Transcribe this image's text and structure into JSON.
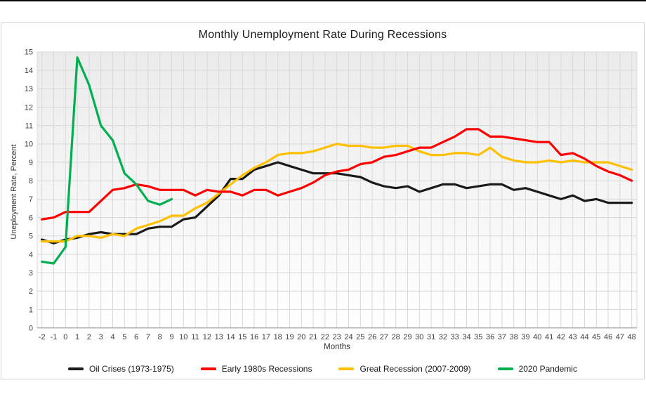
{
  "chart": {
    "container": "bordered chart card on white page"
  },
  "chart_data": {
    "type": "line",
    "title": "Monthly Unemployment Rate During Recessions",
    "xlabel": "Months",
    "ylabel": "Uneployment Rate, Percent",
    "x_ticks": {
      "min": -2,
      "max": 48,
      "step": 1
    },
    "y_ticks": {
      "min": 0,
      "max": 15,
      "step": 1
    },
    "ylim": [
      0,
      15
    ],
    "grid": true,
    "legend_position": "bottom",
    "style": {
      "background_gradient_top": "#ebebeb",
      "background_gradient_bottom": "#ffffff",
      "grid_color": "#d9d9d9",
      "axis_line_color": "#a6a6a6",
      "tick_label_color": "#404040",
      "line_width": 3.2
    },
    "series": [
      {
        "name": "Oil Crises (1973-1975)",
        "color": "#1a1a1a",
        "start_month": -2,
        "values": [
          4.8,
          4.6,
          4.8,
          4.9,
          5.1,
          5.2,
          5.1,
          5.1,
          5.1,
          5.4,
          5.5,
          5.5,
          5.9,
          6.0,
          6.6,
          7.2,
          8.1,
          8.1,
          8.6,
          8.8,
          9.0,
          8.8,
          8.6,
          8.4,
          8.4,
          8.4,
          8.3,
          8.2,
          7.9,
          7.7,
          7.6,
          7.7,
          7.4,
          7.6,
          7.8,
          7.8,
          7.6,
          7.7,
          7.8,
          7.8,
          7.5,
          7.6,
          7.4,
          7.2,
          7.0,
          7.2,
          6.9,
          7.0,
          6.8,
          6.8,
          6.8
        ]
      },
      {
        "name": "Early 1980s Recessions",
        "color": "#ff0000",
        "start_month": -2,
        "values": [
          5.9,
          6.0,
          6.3,
          6.3,
          6.3,
          6.9,
          7.5,
          7.6,
          7.8,
          7.7,
          7.5,
          7.5,
          7.5,
          7.2,
          7.5,
          7.4,
          7.4,
          7.2,
          7.5,
          7.5,
          7.2,
          7.4,
          7.6,
          7.9,
          8.3,
          8.5,
          8.6,
          8.9,
          9.0,
          9.3,
          9.4,
          9.6,
          9.8,
          9.8,
          10.1,
          10.4,
          10.8,
          10.8,
          10.4,
          10.4,
          10.3,
          10.2,
          10.1,
          10.1,
          9.4,
          9.5,
          9.2,
          8.8,
          8.5,
          8.3,
          8.0
        ]
      },
      {
        "name": "Great Recession (2007-2009)",
        "color": "#ffc000",
        "start_month": -2,
        "values": [
          4.7,
          4.7,
          4.7,
          5.0,
          5.0,
          4.9,
          5.1,
          5.0,
          5.4,
          5.6,
          5.8,
          6.1,
          6.1,
          6.5,
          6.8,
          7.3,
          7.8,
          8.3,
          8.7,
          9.0,
          9.4,
          9.5,
          9.5,
          9.6,
          9.8,
          10.0,
          9.9,
          9.9,
          9.8,
          9.8,
          9.9,
          9.9,
          9.6,
          9.4,
          9.4,
          9.5,
          9.5,
          9.4,
          9.8,
          9.3,
          9.1,
          9.0,
          9.0,
          9.1,
          9.0,
          9.1,
          9.0,
          9.0,
          9.0,
          8.8,
          8.6
        ]
      },
      {
        "name": "2020 Pandemic",
        "color": "#00b050",
        "start_month": -2,
        "values": [
          3.6,
          3.5,
          4.4,
          14.7,
          13.2,
          11.0,
          10.2,
          8.4,
          7.8,
          6.9,
          6.7,
          7.0
        ]
      }
    ],
    "draw_order": [
      0,
      2,
      1,
      3
    ]
  }
}
